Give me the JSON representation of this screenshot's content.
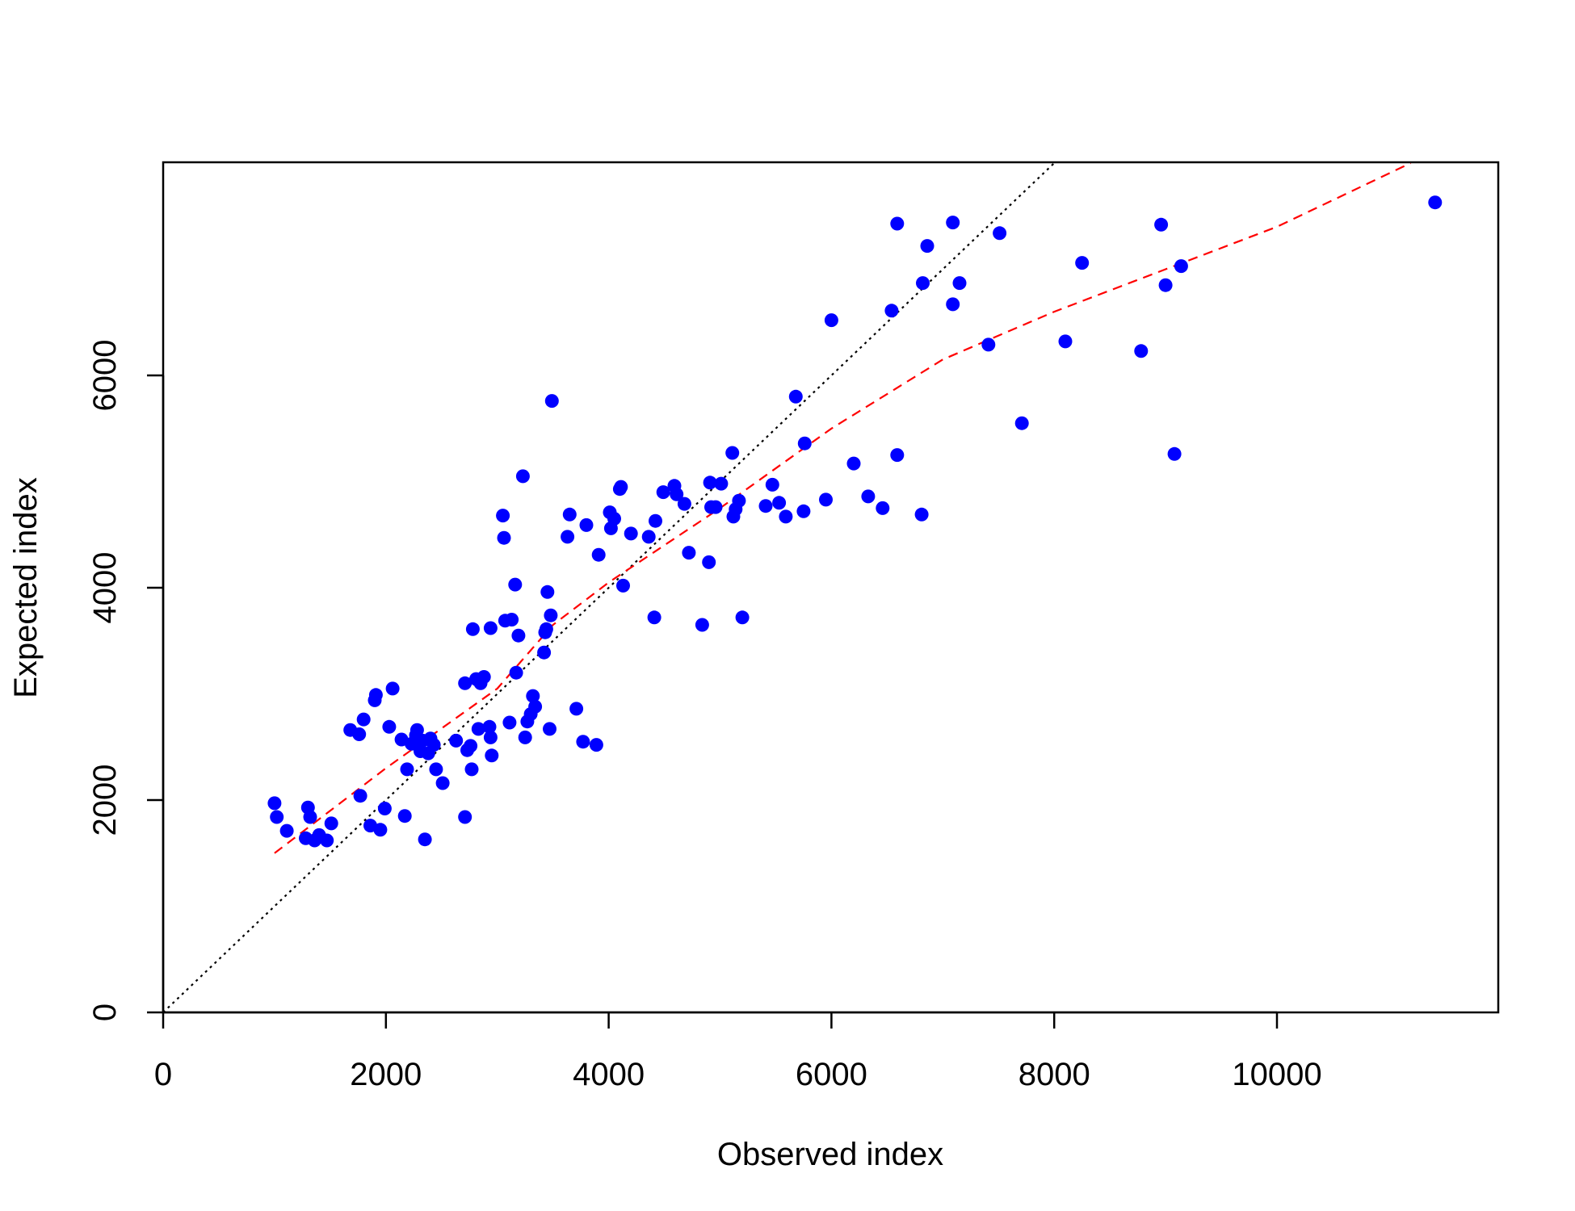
{
  "chart_data": {
    "type": "scatter",
    "title": "",
    "xlabel": "Observed index",
    "ylabel": "Expected index",
    "xlim": [
      0,
      12000
    ],
    "ylim": [
      0,
      8000
    ],
    "x_ticks": [
      0,
      2000,
      4000,
      6000,
      8000,
      10000
    ],
    "x_tick_labels": [
      "0",
      "2000",
      "4000",
      "6000",
      "8000",
      "10000"
    ],
    "y_ticks": [
      0,
      2000,
      4000,
      6000
    ],
    "y_tick_labels": [
      "0",
      "2000",
      "4000",
      "6000"
    ],
    "grid": false,
    "legend": "none",
    "colors": {
      "points": "#0000ff",
      "identity_line": "#000000",
      "fit_line": "#ff0000"
    },
    "reference_lines": [
      {
        "style": "dotted",
        "color": "#000000",
        "points": [
          [
            0,
            0
          ],
          [
            8000,
            8000
          ]
        ]
      },
      {
        "style": "dashed",
        "color": "#ff0000",
        "points": [
          [
            1000,
            1500
          ],
          [
            2000,
            2300
          ],
          [
            3000,
            3050
          ],
          [
            3500,
            3650
          ],
          [
            4000,
            4050
          ],
          [
            5000,
            4750
          ],
          [
            6000,
            5500
          ],
          [
            7000,
            6150
          ],
          [
            8000,
            6600
          ],
          [
            9000,
            7000
          ],
          [
            10000,
            7400
          ],
          [
            11200,
            8000
          ]
        ]
      }
    ],
    "series": [
      {
        "points": [
          [
            1000,
            1970
          ],
          [
            1020,
            1840
          ],
          [
            1110,
            1710
          ],
          [
            1280,
            1640
          ],
          [
            1300,
            1930
          ],
          [
            1320,
            1840
          ],
          [
            1360,
            1620
          ],
          [
            1400,
            1670
          ],
          [
            1470,
            1620
          ],
          [
            1510,
            1780
          ],
          [
            1680,
            2660
          ],
          [
            1760,
            2620
          ],
          [
            1770,
            2040
          ],
          [
            1800,
            2760
          ],
          [
            1860,
            1760
          ],
          [
            1900,
            2940
          ],
          [
            1910,
            2990
          ],
          [
            1950,
            1720
          ],
          [
            1990,
            1920
          ],
          [
            2030,
            2690
          ],
          [
            2060,
            3050
          ],
          [
            2140,
            2570
          ],
          [
            2170,
            1850
          ],
          [
            2190,
            2290
          ],
          [
            2230,
            2530
          ],
          [
            2270,
            2610
          ],
          [
            2280,
            2660
          ],
          [
            2310,
            2460
          ],
          [
            2330,
            2560
          ],
          [
            2350,
            1630
          ],
          [
            2380,
            2440
          ],
          [
            2400,
            2580
          ],
          [
            2430,
            2520
          ],
          [
            2450,
            2290
          ],
          [
            2510,
            2160
          ],
          [
            2630,
            2560
          ],
          [
            2710,
            1840
          ],
          [
            2710,
            3100
          ],
          [
            2730,
            2470
          ],
          [
            2760,
            2510
          ],
          [
            2770,
            2290
          ],
          [
            2780,
            3610
          ],
          [
            2810,
            3140
          ],
          [
            2830,
            2670
          ],
          [
            2850,
            3100
          ],
          [
            2880,
            3160
          ],
          [
            2930,
            2690
          ],
          [
            2940,
            3620
          ],
          [
            2940,
            2590
          ],
          [
            2950,
            2420
          ],
          [
            3050,
            4680
          ],
          [
            3060,
            4470
          ],
          [
            3070,
            3690
          ],
          [
            3110,
            2730
          ],
          [
            3130,
            3700
          ],
          [
            3160,
            4030
          ],
          [
            3170,
            3200
          ],
          [
            3190,
            3550
          ],
          [
            3230,
            5050
          ],
          [
            3250,
            2590
          ],
          [
            3270,
            2740
          ],
          [
            3300,
            2810
          ],
          [
            3320,
            2980
          ],
          [
            3340,
            2880
          ],
          [
            3420,
            3390
          ],
          [
            3430,
            3580
          ],
          [
            3440,
            3610
          ],
          [
            3450,
            3960
          ],
          [
            3470,
            2670
          ],
          [
            3480,
            3740
          ],
          [
            3490,
            5760
          ],
          [
            3630,
            4480
          ],
          [
            3650,
            4690
          ],
          [
            3710,
            2860
          ],
          [
            3770,
            2550
          ],
          [
            3800,
            4590
          ],
          [
            3890,
            2520
          ],
          [
            3910,
            4310
          ],
          [
            4010,
            4710
          ],
          [
            4020,
            4560
          ],
          [
            4050,
            4650
          ],
          [
            4100,
            4930
          ],
          [
            4110,
            4950
          ],
          [
            4130,
            4020
          ],
          [
            4200,
            4510
          ],
          [
            4360,
            4480
          ],
          [
            4410,
            3720
          ],
          [
            4420,
            4630
          ],
          [
            4490,
            4900
          ],
          [
            4590,
            4960
          ],
          [
            4610,
            4880
          ],
          [
            4680,
            4790
          ],
          [
            4720,
            4330
          ],
          [
            4840,
            3650
          ],
          [
            4900,
            4240
          ],
          [
            4910,
            4990
          ],
          [
            4920,
            4760
          ],
          [
            4960,
            4760
          ],
          [
            5010,
            4980
          ],
          [
            5110,
            5270
          ],
          [
            5120,
            4670
          ],
          [
            5140,
            4740
          ],
          [
            5170,
            4820
          ],
          [
            5200,
            3720
          ],
          [
            5410,
            4770
          ],
          [
            5470,
            4970
          ],
          [
            5530,
            4800
          ],
          [
            5590,
            4670
          ],
          [
            5680,
            5800
          ],
          [
            5750,
            4720
          ],
          [
            5760,
            5360
          ],
          [
            5950,
            4830
          ],
          [
            6000,
            6520
          ],
          [
            6200,
            5170
          ],
          [
            6330,
            4860
          ],
          [
            6460,
            4750
          ],
          [
            6540,
            6610
          ],
          [
            6590,
            5250
          ],
          [
            6590,
            7430
          ],
          [
            6810,
            4690
          ],
          [
            6820,
            6870
          ],
          [
            6860,
            7220
          ],
          [
            7090,
            7440
          ],
          [
            7090,
            6670
          ],
          [
            7150,
            6870
          ],
          [
            7410,
            6290
          ],
          [
            7510,
            7340
          ],
          [
            7710,
            5550
          ],
          [
            8100,
            6320
          ],
          [
            8250,
            7060
          ],
          [
            8780,
            6230
          ],
          [
            8960,
            7420
          ],
          [
            9000,
            6850
          ],
          [
            9080,
            5260
          ],
          [
            9140,
            7030
          ],
          [
            11420,
            7630
          ]
        ]
      }
    ]
  }
}
